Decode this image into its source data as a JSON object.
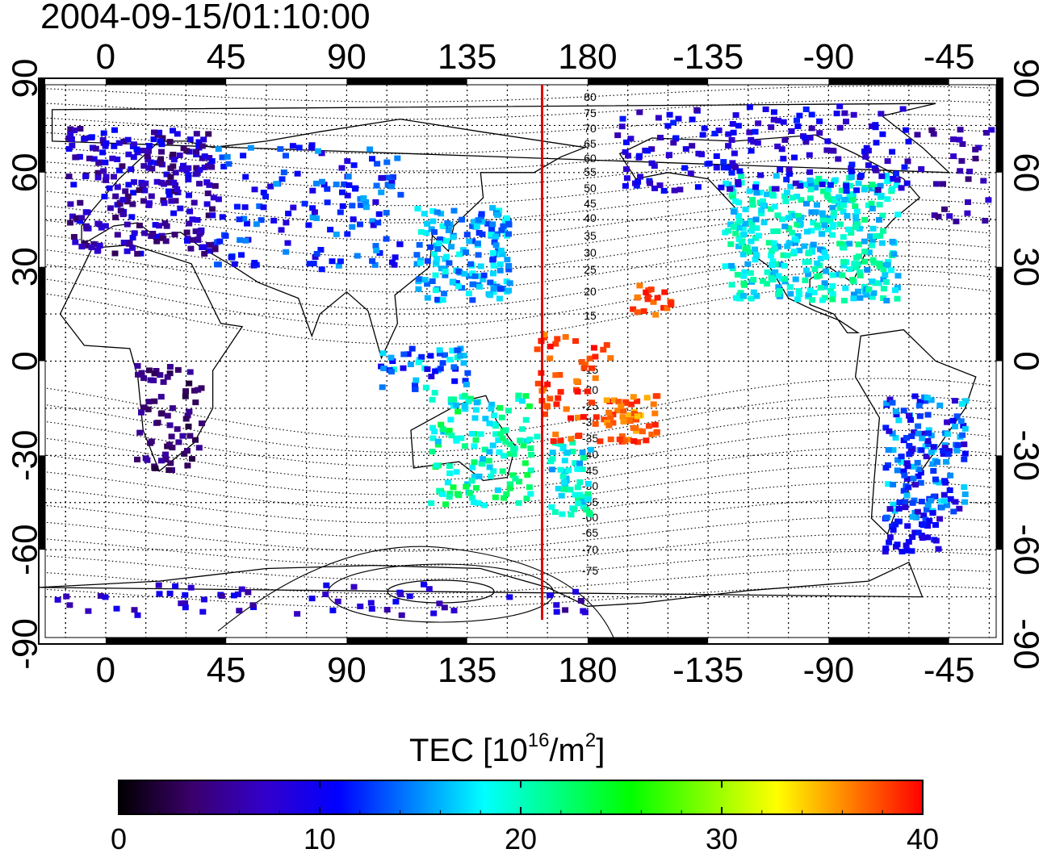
{
  "title": "2004-09-15/01:10:00",
  "map": {
    "projection": "equirectangular",
    "lon_center_top_tick_start": -25,
    "top_ticks": [
      "0",
      "45",
      "90",
      "135",
      "180",
      "-135",
      "-90",
      "-45"
    ],
    "bottom_ticks": [
      "0",
      "45",
      "90",
      "135",
      "180",
      "-135",
      "-90",
      "-45"
    ],
    "left_ticks": [
      "90",
      "60",
      "30",
      "0",
      "-30",
      "-60",
      "-90"
    ],
    "right_ticks": [
      "90",
      "60",
      "30",
      "0",
      "-30",
      "-60",
      "-90"
    ],
    "terminator_color": "#e00000",
    "contour_labels_north": [
      "80",
      "75",
      "70",
      "65",
      "60",
      "55",
      "50",
      "45",
      "40",
      "35",
      "30",
      "25",
      "20",
      "15"
    ],
    "contour_labels_south": [
      "-15",
      "-20",
      "-25",
      "-30",
      "-35",
      "-40",
      "-45",
      "-50",
      "-55",
      "-60",
      "-65",
      "-70",
      "-75"
    ]
  },
  "colorbar": {
    "title_main": "TEC  [10",
    "title_exp1": "16",
    "title_mid": "/m",
    "title_exp2": "2",
    "title_end": "]",
    "tick_labels": [
      "0",
      "10",
      "20",
      "30",
      "40"
    ],
    "range": [
      0,
      40
    ],
    "colormap": [
      "#000000",
      "#3a006b",
      "#3300cc",
      "#0000ff",
      "#0080ff",
      "#00ffff",
      "#00ff80",
      "#00ff00",
      "#80ff00",
      "#ffff00",
      "#ff8000",
      "#ff0000"
    ]
  }
}
